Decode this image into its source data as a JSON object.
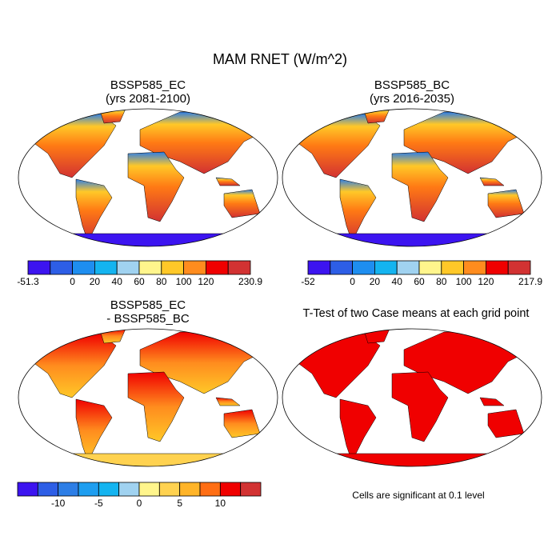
{
  "title": "MAM RNET (W/m^2)",
  "panels": [
    {
      "title": "BSSP585_EC",
      "subtitle": "(yrs 2081-2100)",
      "colorbar": {
        "colors": [
          "#3c14f0",
          "#2d5ee6",
          "#1e8ef0",
          "#14b4f0",
          "#a0d2f0",
          "#fff58c",
          "#ffc828",
          "#ff8c1e",
          "#f00000",
          "#d23232"
        ],
        "levels": [
          -51.3,
          null,
          0,
          20,
          40,
          60,
          80,
          100,
          120,
          null,
          230.9
        ]
      }
    },
    {
      "title": "BSSP585_BC",
      "subtitle": "(yrs 2016-2035)",
      "colorbar": {
        "colors": [
          "#3c14f0",
          "#2d5ee6",
          "#1e8ef0",
          "#14b4f0",
          "#a0d2f0",
          "#fff58c",
          "#ffc828",
          "#ff8c1e",
          "#f00000",
          "#d23232"
        ],
        "levels": [
          -52,
          null,
          0,
          20,
          40,
          60,
          80,
          100,
          120,
          null,
          217.9
        ]
      }
    },
    {
      "title": "BSSP585_EC",
      "subtitle": "- BSSP585_BC",
      "colorbar": {
        "colors": [
          "#3c14f0",
          "#2d5ee6",
          "#2d7ee6",
          "#1e9ef0",
          "#14b4f0",
          "#a0d2f0",
          "#fff58c",
          "#ffd250",
          "#ffb428",
          "#ff6e14",
          "#f00000",
          "#d23232"
        ],
        "levels": [
          null,
          null,
          -10,
          null,
          -5,
          null,
          0,
          null,
          5,
          null,
          10,
          null,
          null
        ]
      }
    },
    {
      "title": "T-Test of two Case means at each grid point",
      "note": "Cells are significant at 0.1 level"
    }
  ]
}
